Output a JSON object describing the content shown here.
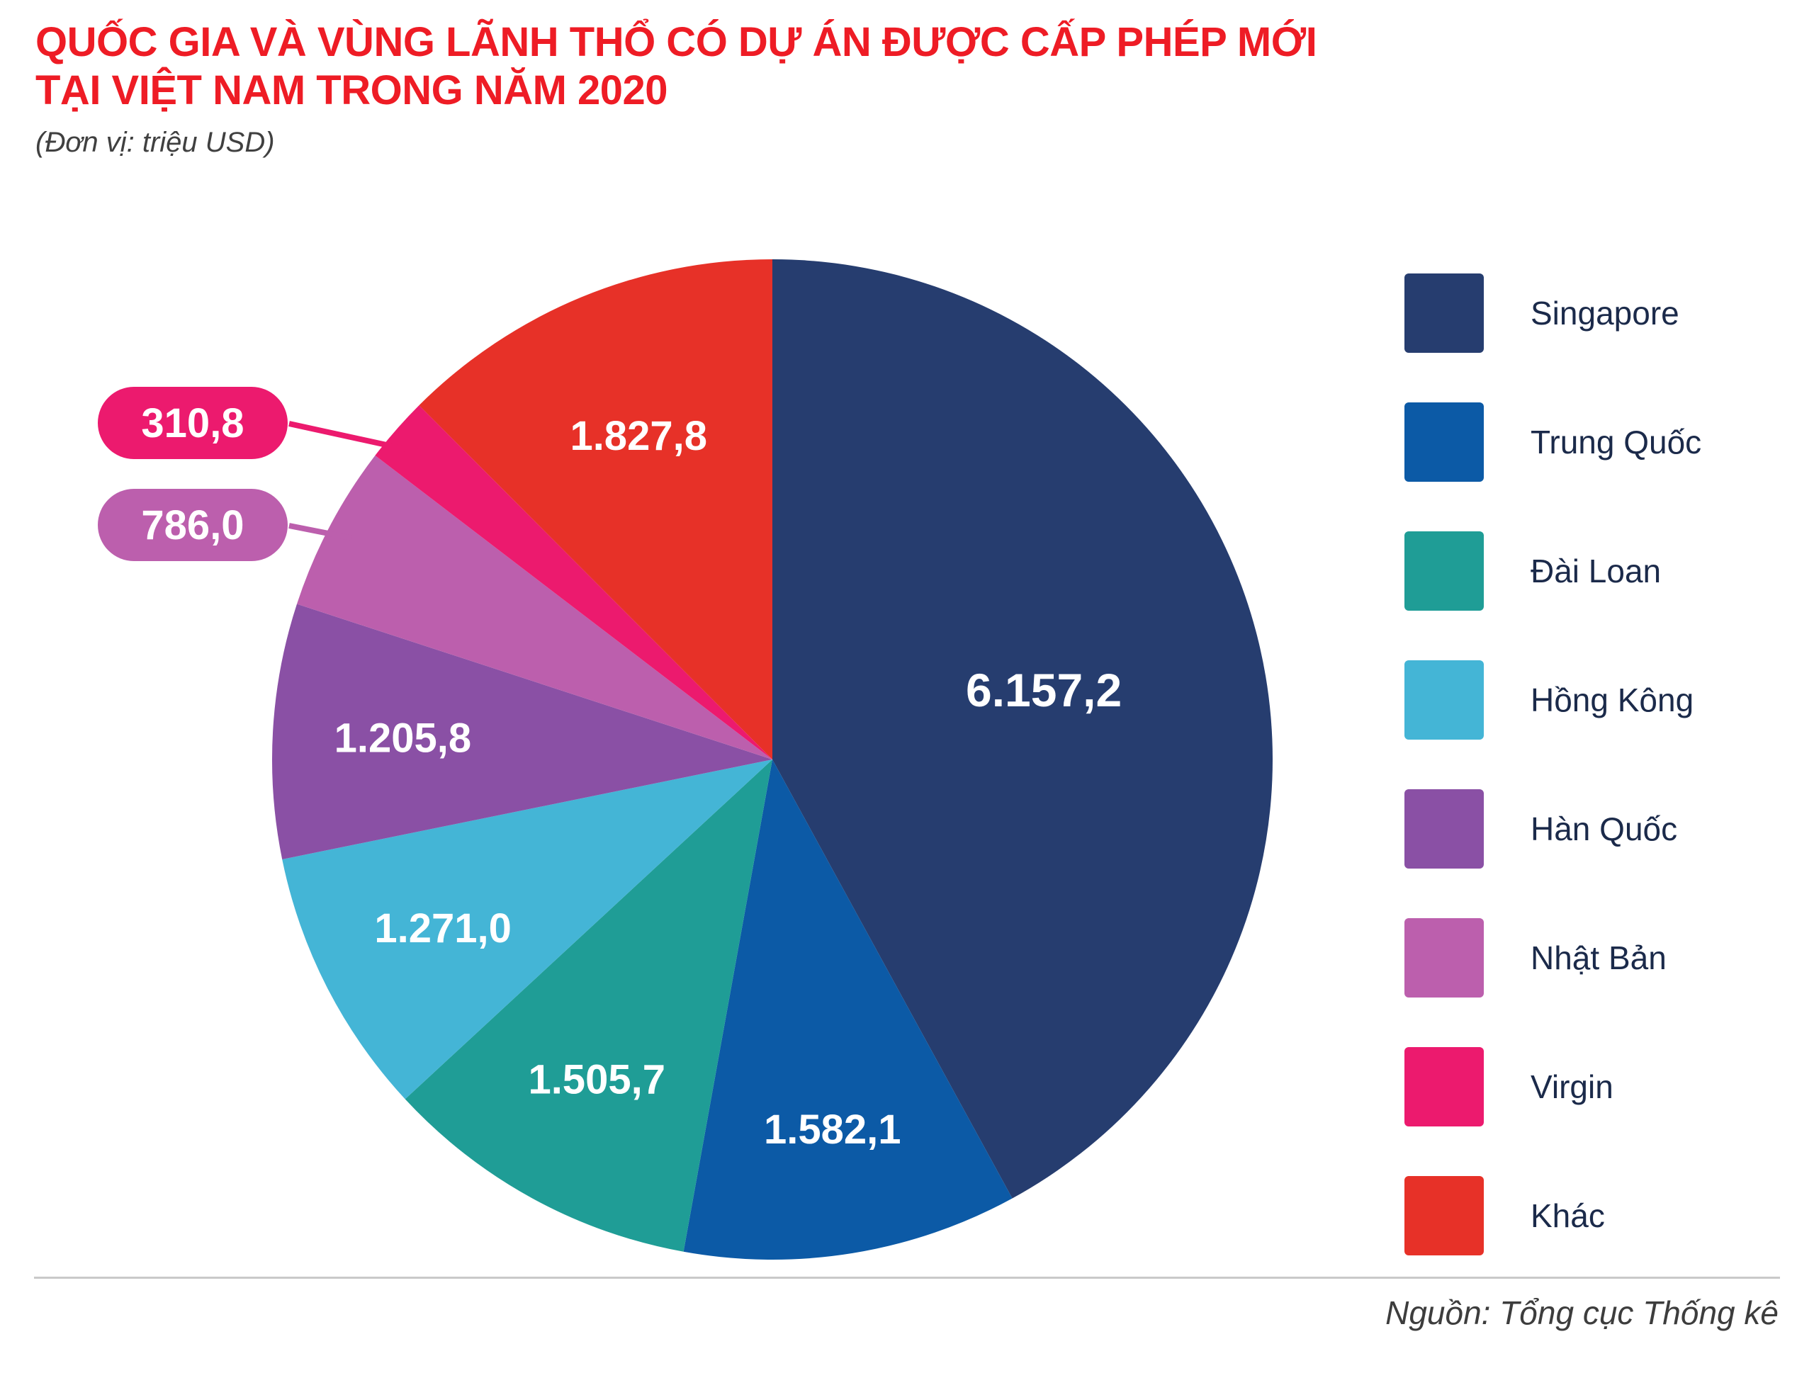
{
  "header": {
    "title_line1": "QUỐC GIA VÀ VÙNG LÃNH THỔ CÓ DỰ ÁN ĐƯỢC CẤP PHÉP MỚI",
    "title_line2": "TẠI VIỆT NAM TRONG NĂM 2020",
    "unit_note": "(Đơn vị: triệu USD)",
    "title_color": "#EE1C25"
  },
  "footer": {
    "source": "Nguồn: Tổng cục Thống kê"
  },
  "chart_data": {
    "type": "pie",
    "title": "Quốc gia và vùng lãnh thổ có dự án được cấp phép mới tại Việt Nam trong năm 2020",
    "unit": "triệu USD",
    "start_angle_deg": 0,
    "direction": "clockwise",
    "legend_position": "right",
    "slices": [
      {
        "label": "Singapore",
        "value": 6157.2,
        "display": "6.157,2",
        "color": "#263D6F",
        "label_placement": "inside"
      },
      {
        "label": "Trung Quốc",
        "value": 1582.1,
        "display": "1.582,1",
        "color": "#0C5AA6",
        "label_placement": "inside"
      },
      {
        "label": "Đài Loan",
        "value": 1505.7,
        "display": "1.505,7",
        "color": "#1F9D96",
        "label_placement": "inside"
      },
      {
        "label": "Hồng Kông",
        "value": 1271.0,
        "display": "1.271,0",
        "color": "#44B5D6",
        "label_placement": "inside"
      },
      {
        "label": "Hàn Quốc",
        "value": 1205.8,
        "display": "1.205,8",
        "color": "#8A50A5",
        "label_placement": "inside"
      },
      {
        "label": "Nhật Bản",
        "value": 786.0,
        "display": "786,0",
        "color": "#BC5FAD",
        "label_placement": "callout"
      },
      {
        "label": "Virgin",
        "value": 310.8,
        "display": "310,8",
        "color": "#EC1A6E",
        "label_placement": "callout"
      },
      {
        "label": "Khác",
        "value": 1827.8,
        "display": "1.827,8",
        "color": "#E73128",
        "label_placement": "inside"
      }
    ]
  }
}
